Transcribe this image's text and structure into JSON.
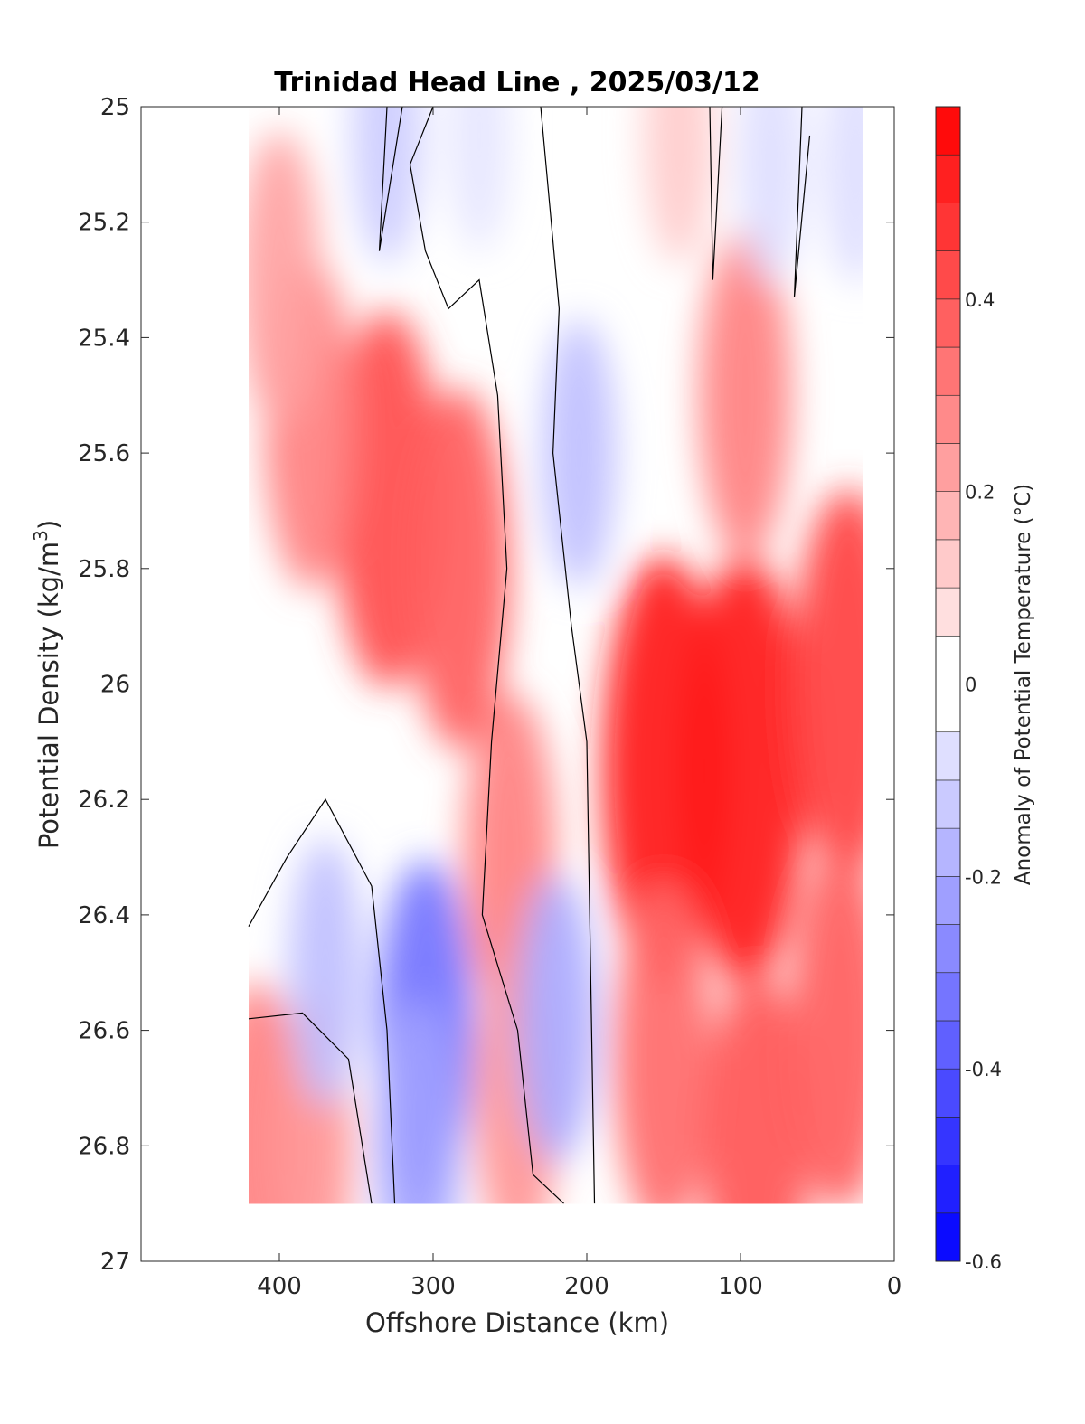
{
  "chart_data": {
    "type": "heatmap",
    "title": "Trinidad Head Line , 2025/03/12",
    "xlabel": "Offshore Distance (km)",
    "ylabel_main": "Potential Density (kg/m",
    "ylabel_sup": "3",
    "ylabel_close": ")",
    "xlim": [
      490,
      0
    ],
    "ylim": [
      25,
      27
    ],
    "x_ticks": [
      400,
      300,
      200,
      100,
      0
    ],
    "y_ticks": [
      25,
      25.2,
      25.4,
      25.6,
      25.8,
      26,
      26.2,
      26.4,
      26.6,
      26.8,
      27
    ],
    "y_tick_labels": [
      "25",
      "25.2",
      "25.4",
      "25.6",
      "25.8",
      "26",
      "26.2",
      "26.4",
      "26.6",
      "26.8",
      "27"
    ],
    "data_extent": {
      "x": [
        420,
        20
      ],
      "y": [
        25,
        26.9
      ]
    },
    "colorbar": {
      "label": "Anomaly of Potential Temperature (°C)",
      "range": [
        -0.6,
        0.6
      ],
      "step": 0.05,
      "ticks": [
        0.4,
        0.2,
        0,
        -0.2,
        -0.4,
        -0.6
      ],
      "tick_labels": [
        "0.4",
        "0.2",
        "0",
        "-0.2",
        "-0.4",
        "-0.6"
      ],
      "colors": {
        "positive": "#ff0000",
        "negative": "#0000ff",
        "neutral": "#ffffff"
      }
    },
    "anomaly_features": [
      {
        "x": 330,
        "y": 25.68,
        "value": 0.42
      },
      {
        "x": 380,
        "y": 25.55,
        "value": 0.3
      },
      {
        "x": 400,
        "y": 25.3,
        "value": 0.22
      },
      {
        "x": 283,
        "y": 25.8,
        "value": 0.38
      },
      {
        "x": 250,
        "y": 26.3,
        "value": 0.3
      },
      {
        "x": 245,
        "y": 26.72,
        "value": 0.25
      },
      {
        "x": 150,
        "y": 26.15,
        "value": 0.55
      },
      {
        "x": 150,
        "y": 26.65,
        "value": 0.35
      },
      {
        "x": 97,
        "y": 26.15,
        "value": 0.55
      },
      {
        "x": 97,
        "y": 25.5,
        "value": 0.3
      },
      {
        "x": 90,
        "y": 26.82,
        "value": 0.4
      },
      {
        "x": 30,
        "y": 26.0,
        "value": 0.45
      },
      {
        "x": 35,
        "y": 26.6,
        "value": 0.38
      },
      {
        "x": 140,
        "y": 25.05,
        "value": 0.12
      },
      {
        "x": 415,
        "y": 26.8,
        "value": 0.3
      },
      {
        "x": 380,
        "y": 26.8,
        "value": 0.25
      },
      {
        "x": 305,
        "y": 26.6,
        "value": -0.33
      },
      {
        "x": 310,
        "y": 26.8,
        "value": -0.22
      },
      {
        "x": 370,
        "y": 26.5,
        "value": -0.15
      },
      {
        "x": 330,
        "y": 25.05,
        "value": -0.12
      },
      {
        "x": 205,
        "y": 25.6,
        "value": -0.15
      },
      {
        "x": 220,
        "y": 26.58,
        "value": -0.2
      },
      {
        "x": 270,
        "y": 25.05,
        "value": -0.06
      },
      {
        "x": 80,
        "y": 25.1,
        "value": -0.08
      },
      {
        "x": 25,
        "y": 25.1,
        "value": -0.08
      }
    ]
  }
}
